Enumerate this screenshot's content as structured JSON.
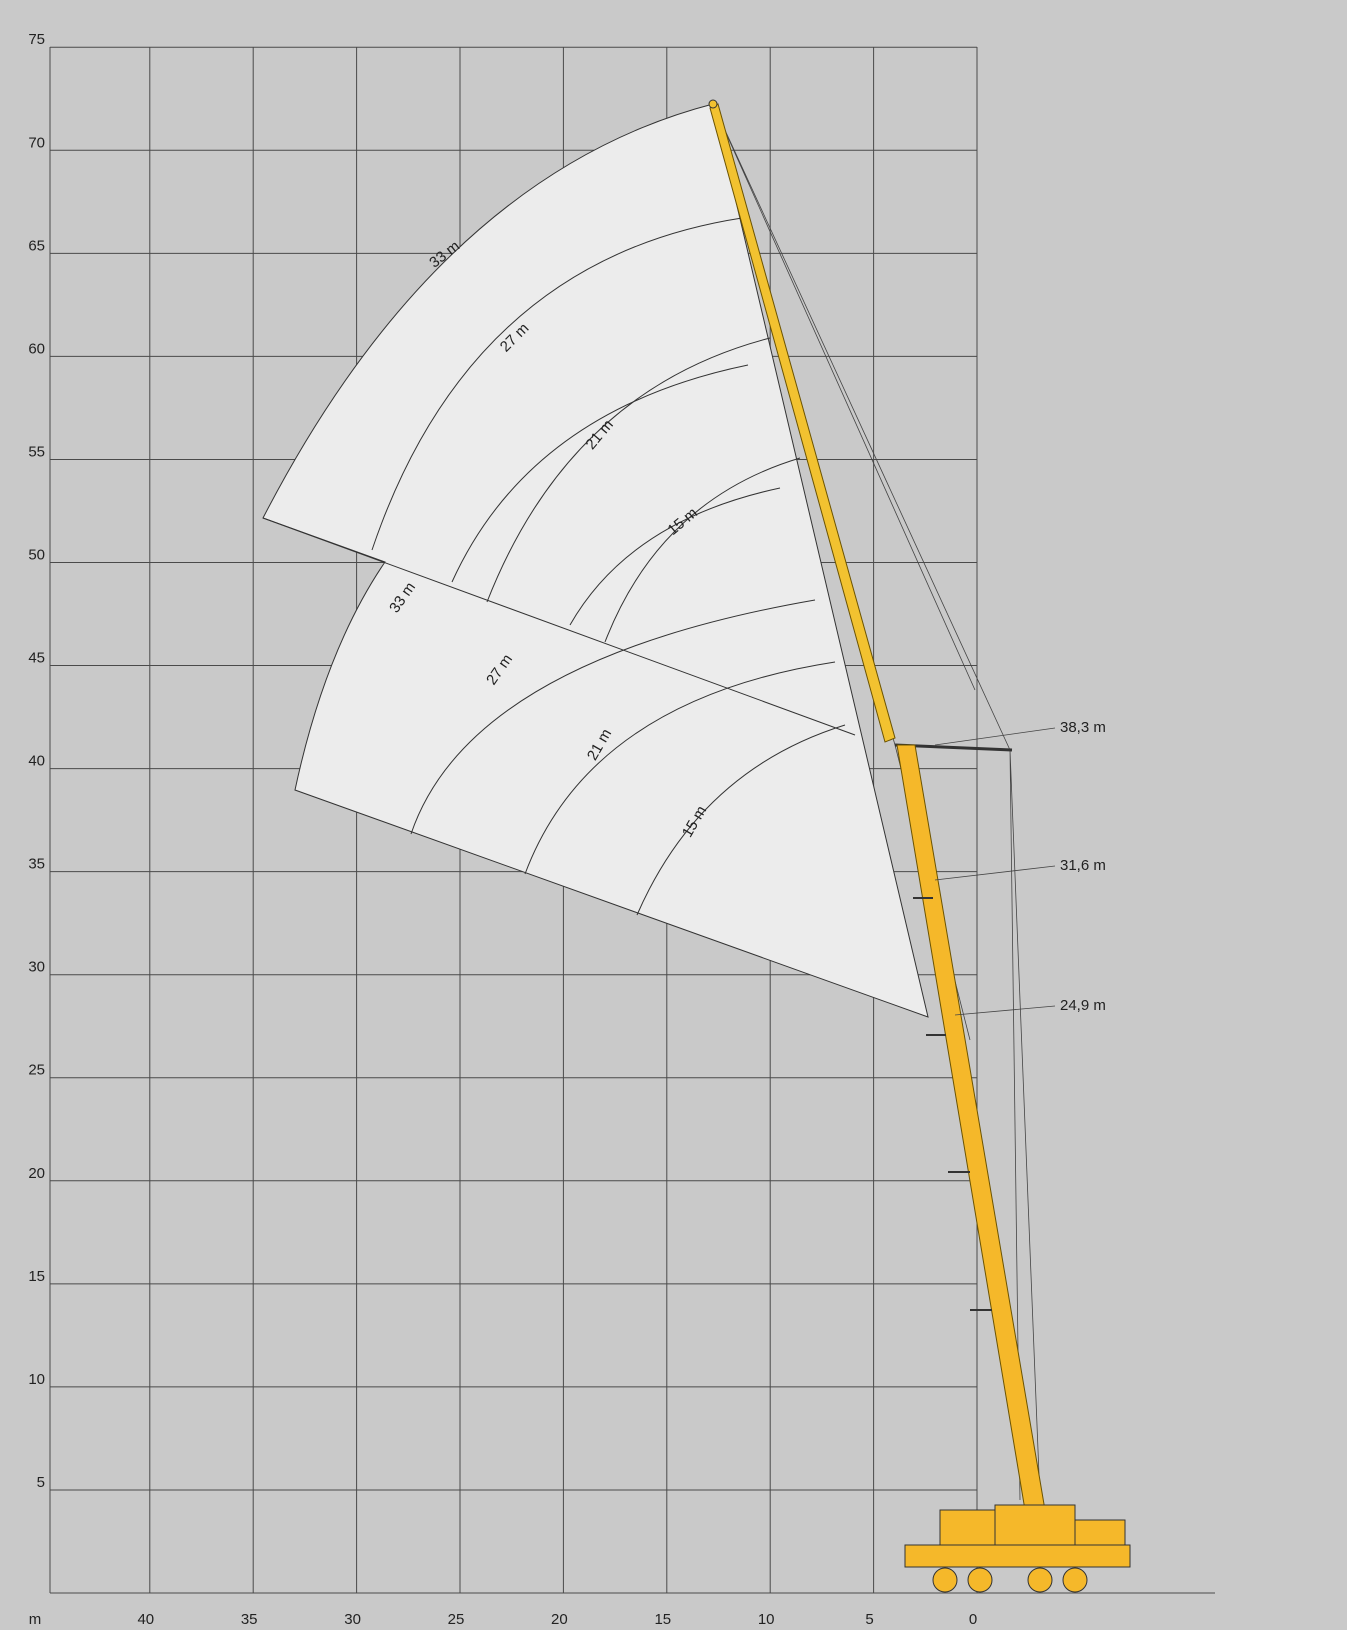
{
  "y_axis": {
    "ticks": [
      75,
      70,
      65,
      60,
      55,
      50,
      45,
      40,
      35,
      30,
      25,
      20,
      15,
      10,
      5
    ]
  },
  "x_axis": {
    "unit": "m",
    "ticks": [
      40,
      35,
      30,
      25,
      20,
      15,
      10,
      5,
      0
    ]
  },
  "jib_lengths_upper": [
    "33 m",
    "27 m",
    "21 m",
    "15 m"
  ],
  "jib_lengths_lower": [
    "33 m",
    "27 m",
    "21 m",
    "15 m"
  ],
  "boom_lengths": [
    "38,3 m",
    "31,6 m",
    "24,9 m"
  ]
}
